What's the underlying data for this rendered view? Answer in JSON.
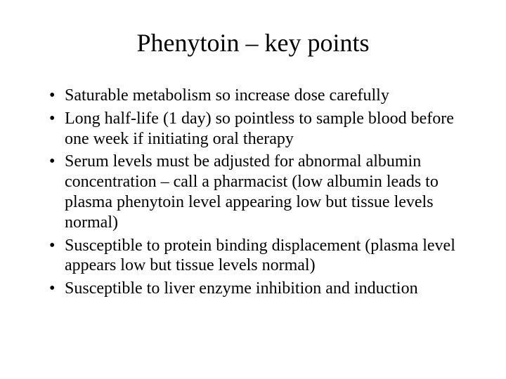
{
  "slide": {
    "title": "Phenytoin – key points",
    "title_fontsize": 36,
    "body_fontsize": 24,
    "font_family": "Times New Roman",
    "text_color": "#000000",
    "background_color": "#ffffff",
    "bullets": [
      "Saturable metabolism so increase dose carefully",
      "Long half-life (1 day) so pointless to sample blood before one week if initiating oral therapy",
      "Serum levels must be adjusted for abnormal albumin concentration – call a pharmacist (low albumin leads to plasma phenytoin level appearing low but tissue levels normal)",
      "Susceptible to protein binding displacement (plasma level appears low but tissue levels normal)",
      "Susceptible to liver enzyme inhibition and induction"
    ]
  }
}
